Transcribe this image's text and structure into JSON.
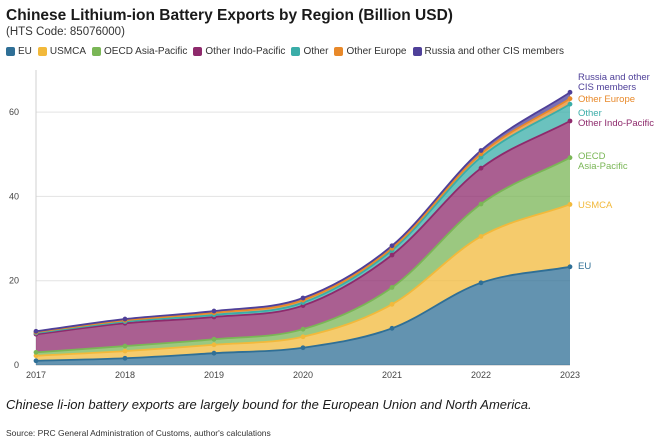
{
  "header": {
    "title": "Chinese Lithium-ion Battery Exports by Region (Billion USD)",
    "subtitle": "(HTS Code: 85076000)"
  },
  "caption": "Chinese li-ion battery exports are largely bound for the European Union and North America.",
  "source": "Source: PRC General Administration of Customs, author's calculations",
  "chart_data": {
    "type": "area",
    "stacked": true,
    "x": [
      2017,
      2018,
      2019,
      2020,
      2021,
      2022,
      2023
    ],
    "ylim": [
      0,
      70
    ],
    "yticks": [
      0,
      20,
      40,
      60
    ],
    "grid": true,
    "legend_position": "top-left",
    "series": [
      {
        "name": "EU",
        "label": "EU",
        "color": "#2f6f96",
        "values": [
          1.0,
          1.6,
          2.8,
          4.1,
          8.7,
          19.5,
          23.3
        ]
      },
      {
        "name": "USMCA",
        "label": "USMCA",
        "color": "#f2b93b",
        "values": [
          1.2,
          1.7,
          2.0,
          2.6,
          5.7,
          11.0,
          14.8
        ]
      },
      {
        "name": "OECD Asia-Pacific",
        "label": "OECD\nAsia-Pacific",
        "color": "#7ab656",
        "values": [
          0.8,
          1.2,
          1.3,
          1.8,
          4.0,
          7.7,
          11.1
        ]
      },
      {
        "name": "Other Indo-Pacific",
        "label": "Other Indo-Pacific",
        "color": "#8e2a6c",
        "values": [
          4.3,
          5.4,
          5.3,
          5.6,
          7.7,
          8.5,
          8.7
        ]
      },
      {
        "name": "Other",
        "label": "Other",
        "color": "#3aada8",
        "values": [
          0.3,
          0.4,
          0.5,
          0.7,
          1.1,
          2.6,
          4.0
        ]
      },
      {
        "name": "Other Europe",
        "label": "Other Europe",
        "color": "#e8892a",
        "values": [
          0.2,
          0.3,
          0.5,
          0.6,
          0.5,
          0.8,
          1.3
        ]
      },
      {
        "name": "Russia and other CIS members",
        "label": "Russia and other\nCIS members",
        "color": "#4f4099",
        "values": [
          0.2,
          0.3,
          0.4,
          0.5,
          0.6,
          0.8,
          1.5
        ]
      }
    ]
  }
}
